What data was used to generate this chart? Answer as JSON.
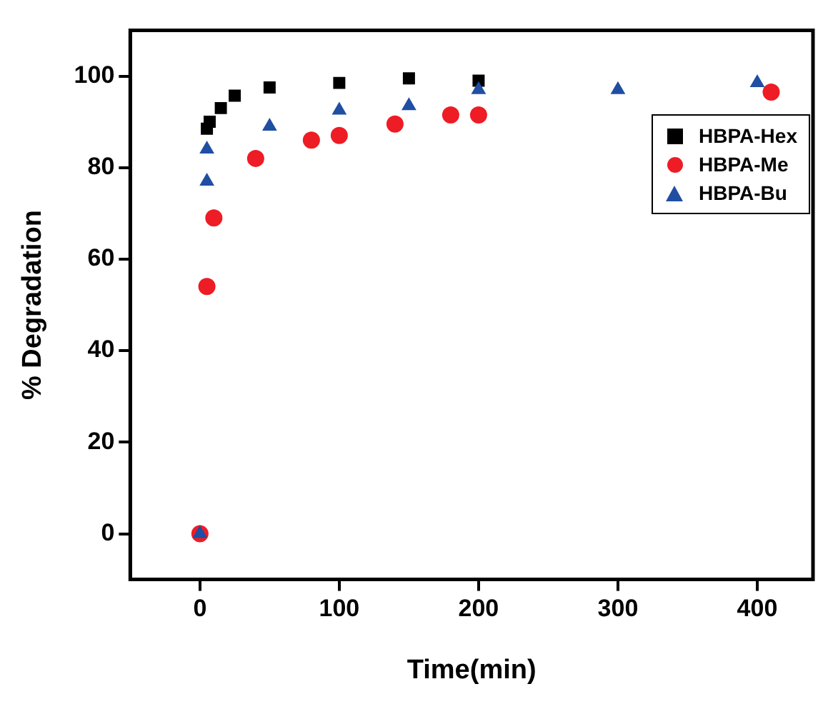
{
  "chart_data": {
    "type": "scatter",
    "xlabel": "Time(min)",
    "ylabel": "% Degradation",
    "xlim": [
      -50,
      440
    ],
    "ylim": [
      -10,
      110
    ],
    "xticks": [
      0,
      100,
      200,
      300,
      400
    ],
    "yticks": [
      0,
      20,
      40,
      60,
      80,
      100
    ],
    "grid": false,
    "legend": "top right",
    "series": [
      {
        "name": "HBPA-Hex",
        "color": "#000000",
        "marker": "square",
        "x": [
          5,
          7,
          15,
          25,
          50,
          100,
          150,
          200
        ],
        "values": [
          88.5,
          90,
          93,
          95.7,
          97.5,
          98.5,
          99.5,
          99
        ]
      },
      {
        "name": "HBPA-Me",
        "color": "#ee1c24",
        "marker": "circle",
        "x": [
          0,
          5,
          10,
          40,
          80,
          100,
          140,
          180,
          200,
          410
        ],
        "values": [
          0,
          54,
          69,
          82,
          86,
          87,
          89.5,
          91.5,
          91.5,
          96.5
        ]
      },
      {
        "name": "HBPA-Bu",
        "color": "#1f4ea3",
        "marker": "triangle",
        "x": [
          0,
          5,
          5,
          50,
          100,
          150,
          200,
          300,
          400
        ],
        "values": [
          0,
          77,
          84,
          89,
          92.5,
          93.5,
          97,
          97,
          98.5
        ]
      }
    ]
  }
}
